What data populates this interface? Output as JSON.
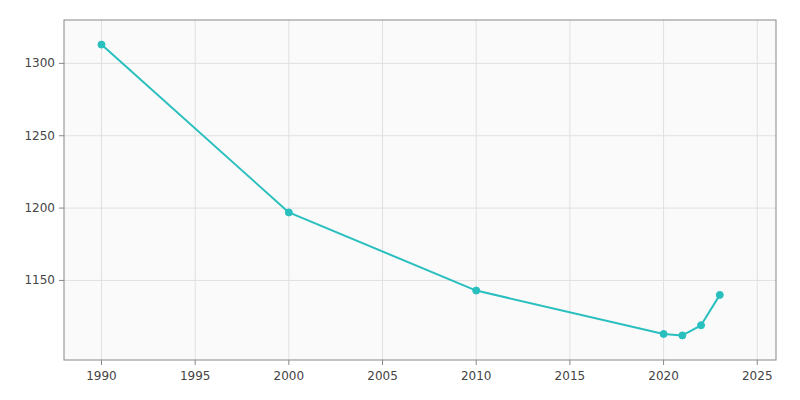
{
  "chart_data": {
    "type": "line",
    "x": [
      1990,
      2000,
      2010,
      2020,
      2021,
      2022,
      2023
    ],
    "values": [
      1313,
      1197,
      1143,
      1113,
      1112,
      1119,
      1140
    ],
    "color": "#2abfbf",
    "marker": "circle",
    "xlim": [
      1988,
      2026
    ],
    "ylim": [
      1095,
      1330
    ],
    "xticks": [
      1990,
      1995,
      2000,
      2005,
      2010,
      2015,
      2020,
      2025
    ],
    "yticks": [
      1150,
      1200,
      1250,
      1300
    ],
    "grid": true
  }
}
